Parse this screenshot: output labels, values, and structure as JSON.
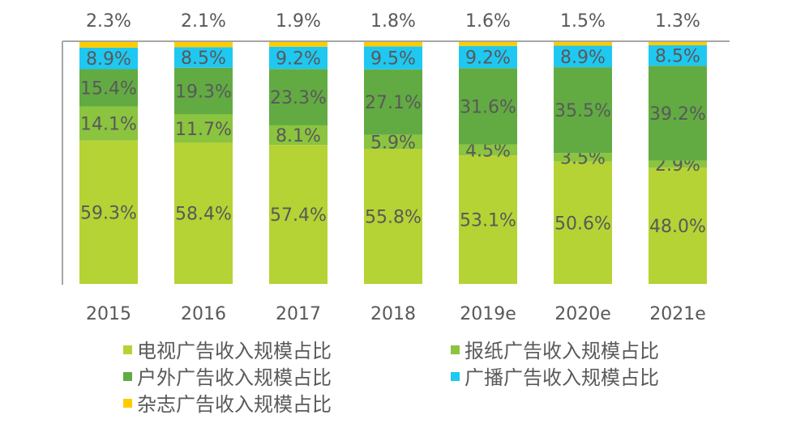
{
  "chart_data": {
    "type": "bar",
    "stacked": true,
    "categories": [
      "2015",
      "2016",
      "2017",
      "2018",
      "2019e",
      "2020e",
      "2021e"
    ],
    "series": [
      {
        "name": "电视广告收入规模占比",
        "color": "#b5d334",
        "values": [
          59.3,
          58.4,
          57.4,
          55.8,
          53.1,
          50.6,
          48.0
        ]
      },
      {
        "name": "报纸广告收入规模占比",
        "color": "#8bc43f",
        "values": [
          14.1,
          11.7,
          8.1,
          5.9,
          4.5,
          3.5,
          2.9
        ]
      },
      {
        "name": "户外广告收入规模占比",
        "color": "#62ab43",
        "values": [
          15.4,
          19.3,
          23.3,
          27.1,
          31.6,
          35.5,
          39.2
        ]
      },
      {
        "name": "广播广告收入规模占比",
        "color": "#1fc8f0",
        "values": [
          8.9,
          8.5,
          9.2,
          9.5,
          9.2,
          8.9,
          8.5
        ]
      },
      {
        "name": "杂志广告收入规模占比",
        "color": "#ffcc00",
        "values": [
          2.3,
          2.1,
          1.9,
          1.8,
          1.6,
          1.5,
          1.3
        ]
      }
    ],
    "value_format": "percent, one decimal",
    "ylim": [
      0,
      100
    ],
    "grid": false,
    "legend_placement": "bottom",
    "text_color": "#595959"
  }
}
